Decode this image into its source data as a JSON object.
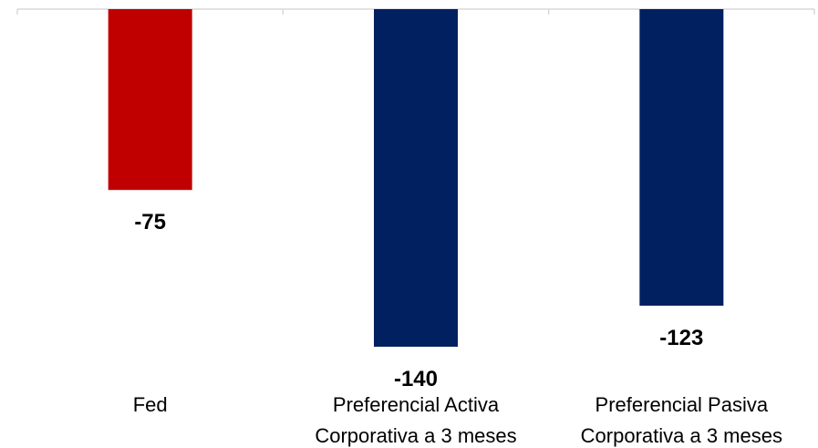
{
  "chart_data": {
    "type": "bar",
    "title": "",
    "xlabel": "",
    "ylabel": "",
    "categories": [
      [
        "Fed"
      ],
      [
        "Preferencial Activa",
        "Corporativa a 3 meses"
      ],
      [
        "Preferencial Pasiva",
        "Corporativa a 3 meses"
      ]
    ],
    "values": [
      -75,
      -140,
      -123
    ],
    "data_labels": [
      "-75",
      "-140",
      "-123"
    ],
    "colors": [
      "#c00000",
      "#002060",
      "#002060"
    ],
    "ylim": [
      -140,
      0
    ],
    "grid": false,
    "legend": "none"
  },
  "colors": {
    "axis_line": "#d9d9d9",
    "background": "#ffffff"
  }
}
